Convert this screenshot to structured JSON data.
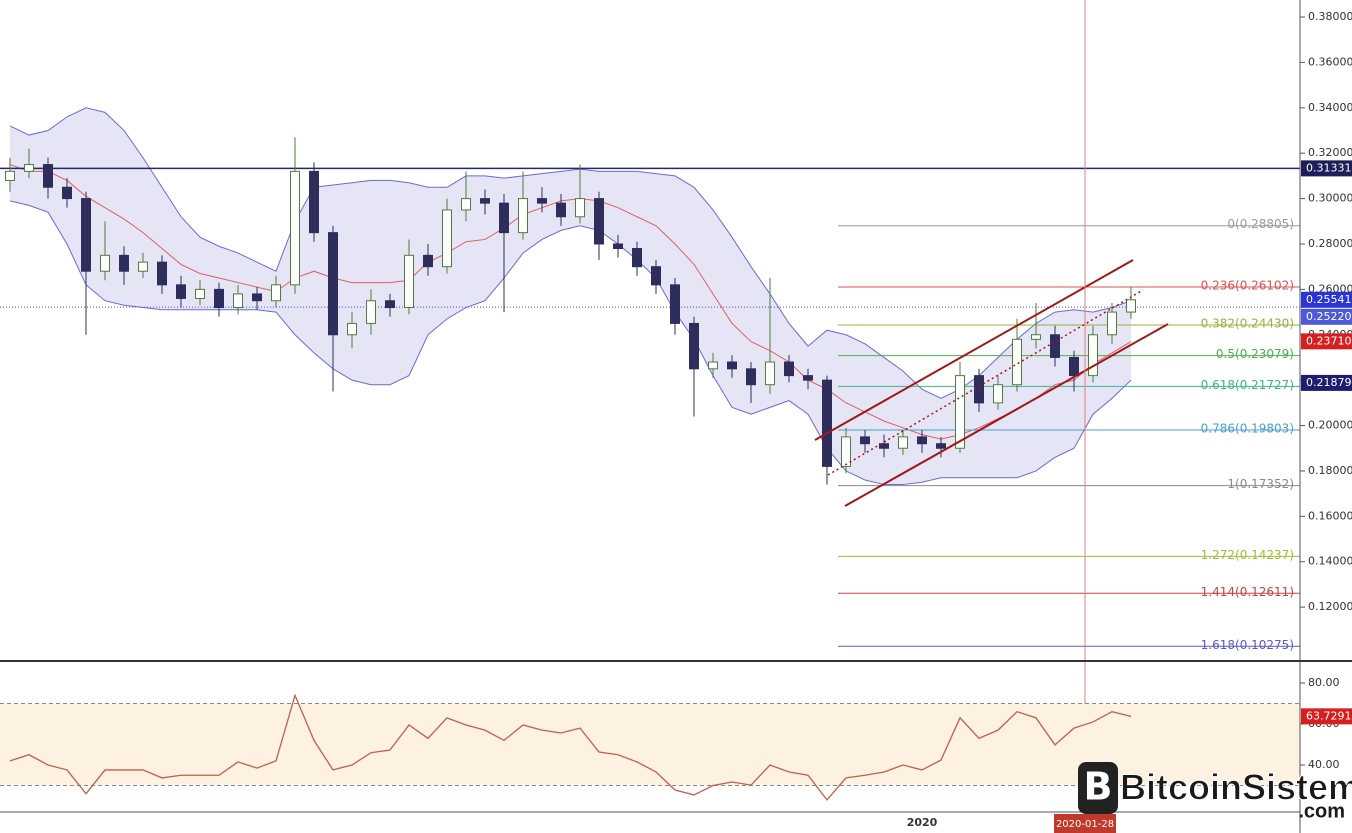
{
  "chart_data": [
    {
      "type": "candlestick",
      "open": [
        0.308,
        0.312,
        0.315,
        0.305,
        0.3,
        0.268,
        0.275,
        0.268,
        0.272,
        0.262,
        0.256,
        0.26,
        0.252,
        0.258,
        0.255,
        0.262,
        0.312,
        0.285,
        0.24,
        0.245,
        0.255,
        0.252,
        0.275,
        0.27,
        0.295,
        0.3,
        0.298,
        0.285,
        0.3,
        0.298,
        0.292,
        0.3,
        0.28,
        0.278,
        0.27,
        0.262,
        0.245,
        0.225,
        0.228,
        0.225,
        0.218,
        0.228,
        0.222,
        0.22,
        0.182,
        0.195,
        0.192,
        0.19,
        0.195,
        0.192,
        0.19,
        0.222,
        0.21,
        0.218,
        0.238,
        0.24,
        0.23,
        0.222,
        0.24,
        0.25
      ],
      "high": [
        0.318,
        0.322,
        0.318,
        0.309,
        0.303,
        0.29,
        0.279,
        0.276,
        0.275,
        0.266,
        0.264,
        0.263,
        0.262,
        0.261,
        0.266,
        0.327,
        0.316,
        0.288,
        0.25,
        0.26,
        0.258,
        0.282,
        0.28,
        0.3,
        0.312,
        0.304,
        0.302,
        0.312,
        0.305,
        0.302,
        0.315,
        0.303,
        0.284,
        0.281,
        0.273,
        0.265,
        0.248,
        0.232,
        0.231,
        0.228,
        0.265,
        0.231,
        0.225,
        0.222,
        0.199,
        0.198,
        0.196,
        0.198,
        0.198,
        0.195,
        0.228,
        0.225,
        0.222,
        0.247,
        0.254,
        0.244,
        0.233,
        0.244,
        0.254,
        0.261
      ],
      "low": [
        0.303,
        0.309,
        0.3,
        0.296,
        0.24,
        0.264,
        0.262,
        0.265,
        0.258,
        0.252,
        0.253,
        0.248,
        0.249,
        0.251,
        0.252,
        0.258,
        0.281,
        0.215,
        0.234,
        0.24,
        0.248,
        0.249,
        0.266,
        0.267,
        0.29,
        0.293,
        0.25,
        0.282,
        0.294,
        0.288,
        0.289,
        0.273,
        0.274,
        0.266,
        0.258,
        0.24,
        0.204,
        0.221,
        0.221,
        0.21,
        0.214,
        0.219,
        0.216,
        0.174,
        0.179,
        0.188,
        0.186,
        0.187,
        0.188,
        0.186,
        0.188,
        0.206,
        0.207,
        0.215,
        0.234,
        0.226,
        0.215,
        0.219,
        0.236,
        0.247
      ],
      "close": [
        0.312,
        0.315,
        0.305,
        0.3,
        0.268,
        0.275,
        0.268,
        0.272,
        0.262,
        0.256,
        0.26,
        0.252,
        0.258,
        0.255,
        0.262,
        0.312,
        0.285,
        0.24,
        0.245,
        0.255,
        0.252,
        0.275,
        0.27,
        0.295,
        0.3,
        0.298,
        0.285,
        0.3,
        0.298,
        0.292,
        0.3,
        0.28,
        0.278,
        0.27,
        0.262,
        0.245,
        0.225,
        0.228,
        0.225,
        0.218,
        0.228,
        0.222,
        0.22,
        0.182,
        0.195,
        0.192,
        0.19,
        0.195,
        0.192,
        0.19,
        0.222,
        0.21,
        0.218,
        0.238,
        0.24,
        0.23,
        0.222,
        0.24,
        0.25,
        0.25541
      ],
      "up_color": "#4f7d3a",
      "down_color": "#2e2e5c",
      "bollinger": {
        "upper": [
          0.332,
          0.328,
          0.33,
          0.336,
          0.34,
          0.338,
          0.33,
          0.318,
          0.305,
          0.292,
          0.283,
          0.279,
          0.276,
          0.272,
          0.268,
          0.29,
          0.305,
          0.306,
          0.307,
          0.308,
          0.308,
          0.307,
          0.305,
          0.305,
          0.31,
          0.31,
          0.309,
          0.31,
          0.311,
          0.312,
          0.313,
          0.312,
          0.312,
          0.312,
          0.311,
          0.31,
          0.305,
          0.295,
          0.283,
          0.27,
          0.258,
          0.245,
          0.235,
          0.242,
          0.24,
          0.236,
          0.23,
          0.224,
          0.216,
          0.212,
          0.216,
          0.222,
          0.23,
          0.238,
          0.245,
          0.25,
          0.251,
          0.25,
          0.252,
          0.255
        ],
        "middle": [
          0.315,
          0.312,
          0.312,
          0.308,
          0.301,
          0.296,
          0.291,
          0.285,
          0.278,
          0.271,
          0.267,
          0.265,
          0.263,
          0.261,
          0.259,
          0.265,
          0.268,
          0.265,
          0.263,
          0.263,
          0.263,
          0.264,
          0.272,
          0.276,
          0.281,
          0.282,
          0.287,
          0.293,
          0.296,
          0.299,
          0.3,
          0.299,
          0.296,
          0.292,
          0.288,
          0.28,
          0.271,
          0.258,
          0.245,
          0.237,
          0.233,
          0.228,
          0.22,
          0.216,
          0.21,
          0.206,
          0.202,
          0.199,
          0.196,
          0.194,
          0.196,
          0.199,
          0.203,
          0.207,
          0.212,
          0.218,
          0.22,
          0.227,
          0.232,
          0.237
        ],
        "lower": [
          0.299,
          0.297,
          0.294,
          0.28,
          0.262,
          0.255,
          0.253,
          0.252,
          0.251,
          0.251,
          0.251,
          0.251,
          0.251,
          0.251,
          0.25,
          0.24,
          0.232,
          0.225,
          0.22,
          0.218,
          0.218,
          0.222,
          0.24,
          0.247,
          0.252,
          0.255,
          0.265,
          0.276,
          0.282,
          0.286,
          0.288,
          0.286,
          0.28,
          0.273,
          0.265,
          0.25,
          0.238,
          0.222,
          0.208,
          0.205,
          0.208,
          0.211,
          0.205,
          0.19,
          0.18,
          0.176,
          0.174,
          0.174,
          0.175,
          0.177,
          0.177,
          0.177,
          0.177,
          0.177,
          0.18,
          0.186,
          0.19,
          0.205,
          0.212,
          0.22
        ],
        "band_color": "#6a6ad8",
        "fill": "#dcdcf3",
        "middle_color": "#e06060"
      },
      "ylim": [
        0.0967,
        0.3875
      ],
      "yticks": [
        {
          "value": 0.12,
          "label": "0.12000"
        },
        {
          "value": 0.14,
          "label": "0.14000"
        },
        {
          "value": 0.16,
          "label": "0.16000"
        },
        {
          "value": 0.18,
          "label": "0.18000"
        },
        {
          "value": 0.2,
          "label": "0.20000"
        },
        {
          "value": 0.22,
          "label": "0.22000"
        },
        {
          "value": 0.24,
          "label": "0.24000"
        },
        {
          "value": 0.26,
          "label": "0.26000"
        },
        {
          "value": 0.28,
          "label": "0.28000"
        },
        {
          "value": 0.3,
          "label": "0.30000"
        },
        {
          "value": 0.32,
          "label": "0.32000"
        },
        {
          "value": 0.34,
          "label": "0.34000"
        },
        {
          "value": 0.36,
          "label": "0.36000"
        },
        {
          "value": 0.38,
          "label": "0.38000"
        }
      ],
      "hline": {
        "value": 0.31331,
        "color": "#26266e"
      },
      "crosshair_price": 0.2522,
      "price_labels": [
        {
          "value": 0.31331,
          "color": "#1e1e5a"
        },
        {
          "value": 0.25541,
          "color": "#2b35d4"
        },
        {
          "value": 0.2522,
          "label": "0.25220",
          "color": "#4c5ad8"
        },
        {
          "value": 0.2371,
          "label": "0.23710",
          "color": "#d42020"
        },
        {
          "value": 0.21879,
          "color": "#1e1e70"
        }
      ],
      "fib_levels": [
        {
          "value": 0.28805,
          "label": "0(0.28805)",
          "color": "#9a9a9a"
        },
        {
          "value": 0.26102,
          "label": "0.236(0.26102)",
          "color": "#d9534f"
        },
        {
          "value": 0.2443,
          "label": "0.382(0.24430)",
          "color": "#98b040"
        },
        {
          "value": 0.23079,
          "label": "0.5(0.23079)",
          "color": "#4caf50"
        },
        {
          "value": 0.21727,
          "label": "0.618(0.21727)",
          "color": "#3fb58a"
        },
        {
          "value": 0.19803,
          "label": "0.786(0.19803)",
          "color": "#4a9fd0"
        },
        {
          "value": 0.17352,
          "label": "1(0.17352)",
          "color": "#8a8a8a"
        },
        {
          "value": 0.14237,
          "label": "1.272(0.14237)",
          "color": "#a3bb3a"
        },
        {
          "value": 0.12611,
          "label": "1.414(0.12611)",
          "color": "#d04040"
        },
        {
          "value": 0.10275,
          "label": "1.618(0.10275)",
          "color": "#5a5acd"
        }
      ]
    },
    {
      "type": "line",
      "values": [
        42,
        45,
        40,
        37.6,
        26,
        37.6,
        37.6,
        37.6,
        33.7,
        35,
        35,
        35,
        41.5,
        38.5,
        42,
        74,
        52,
        37.6,
        40,
        46,
        47.3,
        59.5,
        53,
        63,
        59.5,
        57,
        52,
        59.5,
        57,
        55.6,
        58,
        46.3,
        45,
        41.5,
        36.6,
        27.8,
        25.4,
        30,
        31.7,
        30.2,
        40,
        36.6,
        35,
        23,
        33.7,
        35,
        36.6,
        40,
        37.6,
        42.4,
        63,
        53,
        57,
        66,
        63,
        49.8,
        58,
        61,
        66,
        63.7291
      ],
      "color": "#c0604a",
      "ylim": [
        17.07,
        90.24
      ],
      "yticks": [
        {
          "value": 40,
          "label": "40.00"
        },
        {
          "value": 60,
          "label": "60.00"
        },
        {
          "value": 80,
          "label": "80.00"
        }
      ],
      "bands": [
        30,
        70
      ],
      "band_fill": "#fdf1e1",
      "last_label": {
        "value": 63.7291,
        "color": "#d42020"
      },
      "x_labels": [
        "2020"
      ],
      "crosshair_date": "2020-01-28"
    }
  ],
  "watermark": {
    "brand": "BitcoinSistemi",
    "domain": ".com"
  }
}
